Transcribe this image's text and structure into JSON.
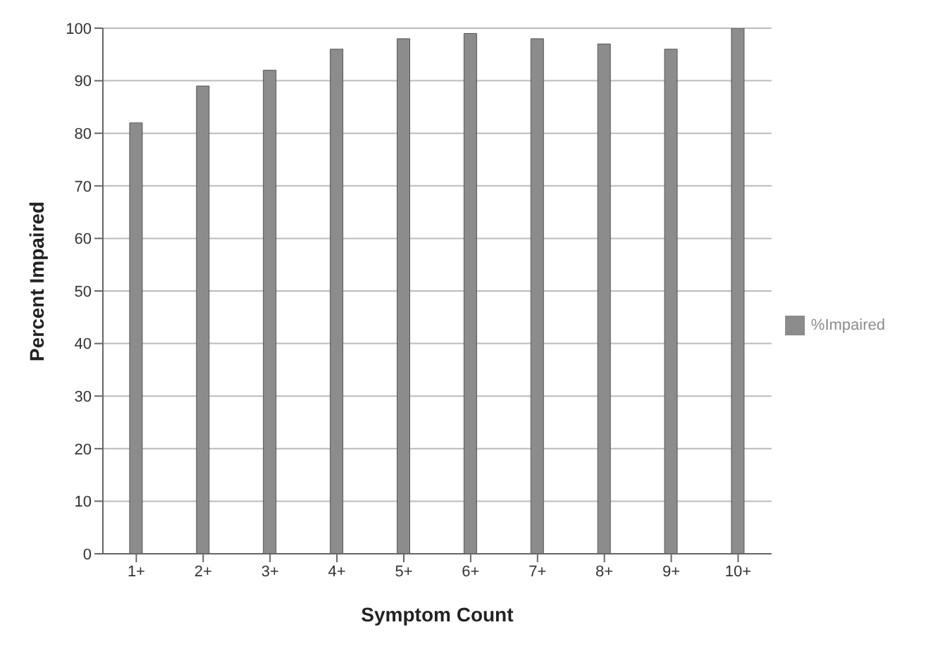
{
  "chart_data": {
    "type": "bar",
    "xlabel": "Symptom Count",
    "ylabel": "Percent Impaired",
    "categories": [
      "1+",
      "2+",
      "3+",
      "4+",
      "5+",
      "6+",
      "7+",
      "8+",
      "9+",
      "10+"
    ],
    "series": [
      {
        "name": "%Impaired",
        "color": "#8c8c8c",
        "values": [
          82,
          89,
          92,
          96,
          98,
          99,
          98,
          97,
          96,
          100
        ]
      }
    ],
    "ylim": [
      0,
      100
    ],
    "yticks": [
      0,
      10,
      20,
      30,
      40,
      50,
      60,
      70,
      80,
      90,
      100
    ],
    "grid": "y",
    "legend": "right"
  }
}
